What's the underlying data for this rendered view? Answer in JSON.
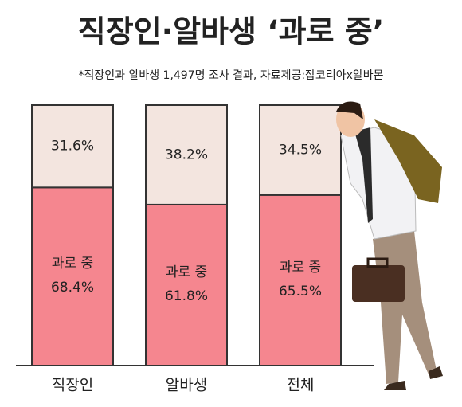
{
  "chart_data": {
    "type": "stacked_bar",
    "title": "직장인·알바생 ‘과로 중’",
    "subtitle": "*직장인과 알바생 1,497명 조사 결과, 자료제공:잡코리아x알바몬",
    "categories": [
      "직장인",
      "알바생",
      "전체"
    ],
    "series": [
      {
        "name": "과로 중",
        "color": "#f5868f",
        "values": [
          68.4,
          61.8,
          65.5
        ],
        "value_labels": [
          "68.4%",
          "61.8%",
          "65.5%"
        ]
      },
      {
        "color": "#f3e5df",
        "values": [
          31.6,
          38.2,
          34.5
        ],
        "value_labels": [
          "31.6%",
          "38.2%",
          "34.5%"
        ]
      }
    ],
    "ylim": [
      0,
      100
    ]
  }
}
